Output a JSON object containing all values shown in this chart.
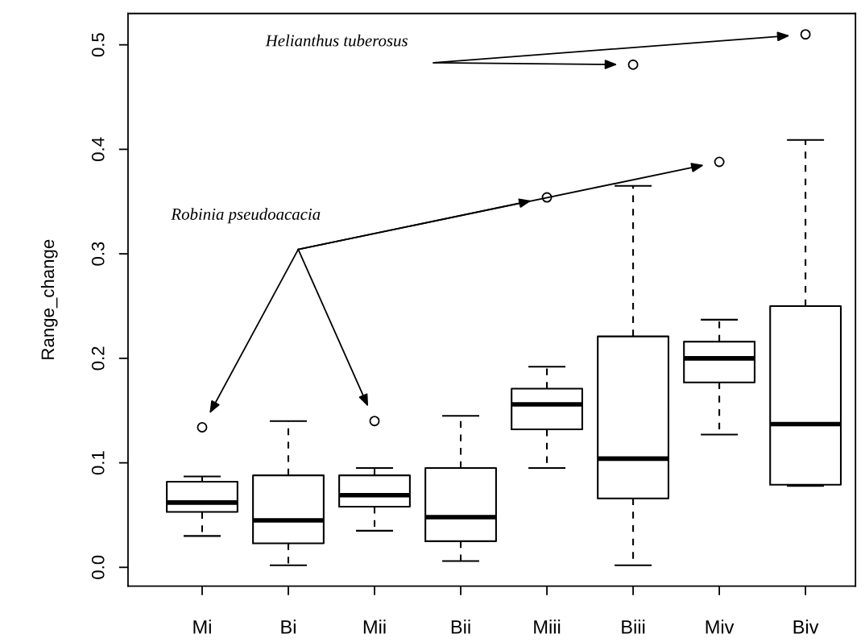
{
  "chart_data": {
    "type": "box",
    "ylabel": "Range_change",
    "categories": [
      "Mi",
      "Bi",
      "Mii",
      "Bii",
      "Miii",
      "Biii",
      "Miv",
      "Biv"
    ],
    "boxes": [
      {
        "low": 0.03,
        "q1": 0.053,
        "median": 0.062,
        "q3": 0.082,
        "high": 0.087,
        "outliers": [
          0.134
        ]
      },
      {
        "low": 0.002,
        "q1": 0.023,
        "median": 0.045,
        "q3": 0.088,
        "high": 0.14
      },
      {
        "low": 0.035,
        "q1": 0.058,
        "median": 0.069,
        "q3": 0.088,
        "high": 0.095,
        "outliers": [
          0.14
        ]
      },
      {
        "low": 0.006,
        "q1": 0.025,
        "median": 0.048,
        "q3": 0.095,
        "high": 0.145
      },
      {
        "low": 0.095,
        "q1": 0.132,
        "median": 0.156,
        "q3": 0.171,
        "high": 0.192,
        "outliers": [
          0.354
        ]
      },
      {
        "low": 0.002,
        "q1": 0.066,
        "median": 0.104,
        "q3": 0.221,
        "high": 0.365,
        "outliers": [
          0.481
        ]
      },
      {
        "low": 0.127,
        "q1": 0.177,
        "median": 0.2,
        "q3": 0.216,
        "high": 0.237,
        "outliers": [
          0.388
        ]
      },
      {
        "low": 0.078,
        "q1": 0.079,
        "median": 0.137,
        "q3": 0.25,
        "high": 0.409,
        "outliers": [
          0.51
        ]
      }
    ],
    "ylim": [
      -0.018,
      0.53
    ],
    "yticks": [
      {
        "value": 0,
        "label": "0.0"
      },
      {
        "value": 0.1,
        "label": "0.1"
      },
      {
        "value": 0.2,
        "label": "0.2"
      },
      {
        "value": 0.3,
        "label": "0.3"
      },
      {
        "value": 0.4,
        "label": "0.4"
      },
      {
        "value": 0.5,
        "label": "0.5"
      }
    ],
    "annotations": [
      "Helianthus tuberosus",
      "Robinia pseudoacacia"
    ],
    "grid": false,
    "legend": false
  }
}
